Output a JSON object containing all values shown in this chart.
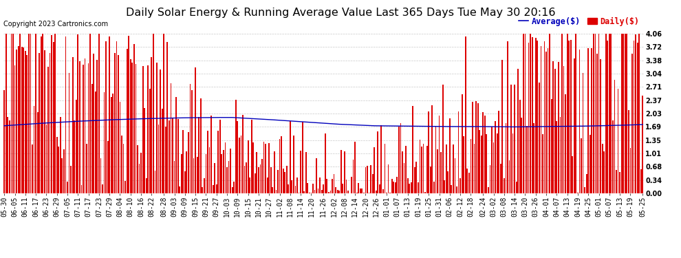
{
  "title": "Daily Solar Energy & Running Average Value Last 365 Days Tue May 30 20:16",
  "copyright": "Copyright 2023 Cartronics.com",
  "legend_avg": "Average($)",
  "legend_daily": "Daily($)",
  "ylabel_right_ticks": [
    0.0,
    0.34,
    0.68,
    1.01,
    1.35,
    1.69,
    2.03,
    2.37,
    2.71,
    3.04,
    3.38,
    3.72,
    4.06
  ],
  "ymax": 4.06,
  "ymin": 0.0,
  "bar_color": "#dd0000",
  "avg_color": "#0000bb",
  "daily_color": "#dd0000",
  "background_color": "#ffffff",
  "grid_color": "#bbbbbb",
  "title_fontsize": 11.5,
  "copyright_fontsize": 7,
  "tick_fontsize": 7,
  "legend_fontsize": 8.5,
  "x_labels": [
    "05-30",
    "06-05",
    "06-11",
    "06-17",
    "06-23",
    "06-29",
    "07-05",
    "07-11",
    "07-17",
    "07-23",
    "07-29",
    "08-04",
    "08-10",
    "08-16",
    "08-22",
    "08-28",
    "09-03",
    "09-09",
    "09-15",
    "09-21",
    "09-27",
    "10-03",
    "10-09",
    "10-15",
    "10-21",
    "10-27",
    "11-02",
    "11-08",
    "11-14",
    "11-20",
    "11-26",
    "12-02",
    "12-08",
    "12-14",
    "12-20",
    "12-26",
    "01-01",
    "01-07",
    "01-13",
    "01-19",
    "01-25",
    "01-31",
    "02-06",
    "02-12",
    "02-18",
    "02-24",
    "03-02",
    "03-08",
    "03-14",
    "03-20",
    "03-26",
    "04-01",
    "04-07",
    "04-13",
    "04-19",
    "04-25",
    "05-01",
    "05-07",
    "05-13",
    "05-19",
    "05-25"
  ],
  "avg_curve_x": [
    0,
    20,
    40,
    60,
    80,
    100,
    120,
    130,
    150,
    170,
    190,
    210,
    230,
    250,
    270,
    290,
    310,
    330,
    350,
    364
  ],
  "avg_curve_y": [
    1.72,
    1.78,
    1.83,
    1.87,
    1.9,
    1.92,
    1.93,
    1.93,
    1.88,
    1.82,
    1.76,
    1.72,
    1.71,
    1.7,
    1.7,
    1.69,
    1.7,
    1.71,
    1.73,
    1.75
  ]
}
